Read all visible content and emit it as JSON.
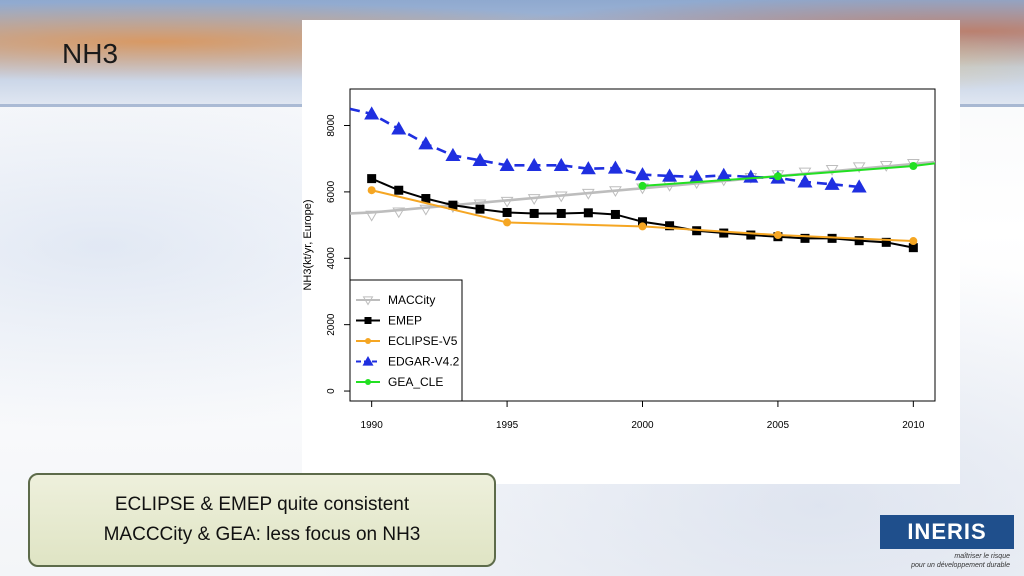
{
  "slide": {
    "title": "NH3"
  },
  "note": {
    "line1": "ECLIPSE & EMEP quite consistent",
    "line2": "MACCCity & GEA: less focus on NH3"
  },
  "logo": {
    "name": "INERIS",
    "tagline_line1": "maîtriser le risque",
    "tagline_line2": "pour un développement durable"
  },
  "chart_data": {
    "type": "line",
    "title": "",
    "xlabel": "",
    "ylabel": "NH3(kt/yr, Europe)",
    "xlim": [
      1989.2,
      2010.8
    ],
    "ylim": [
      -300,
      9100
    ],
    "xticks": [
      1990,
      1995,
      2000,
      2005,
      2010
    ],
    "yticks": [
      0,
      2000,
      4000,
      6000,
      8000
    ],
    "legend_position": "bottom-left",
    "series": [
      {
        "name": "MACCity",
        "color": "#bdbdbd",
        "marker": "triangle-down-open",
        "dash": "solid",
        "points": [
          [
            1989.2,
            5350
          ],
          [
            1990,
            5380
          ],
          [
            2010.8,
            6900
          ]
        ],
        "markers": [
          [
            1990,
            5300
          ],
          [
            1991,
            5400
          ],
          [
            1992,
            5480
          ],
          [
            1993,
            5560
          ],
          [
            1994,
            5640
          ],
          [
            1995,
            5720
          ],
          [
            1996,
            5800
          ],
          [
            1997,
            5880
          ],
          [
            1998,
            5960
          ],
          [
            1999,
            6040
          ],
          [
            2000,
            6120
          ],
          [
            2001,
            6200
          ],
          [
            2002,
            6280
          ],
          [
            2003,
            6360
          ],
          [
            2004,
            6440
          ],
          [
            2005,
            6520
          ],
          [
            2006,
            6600
          ],
          [
            2007,
            6680
          ],
          [
            2008,
            6760
          ],
          [
            2009,
            6800
          ],
          [
            2010,
            6860
          ]
        ]
      },
      {
        "name": "EMEP",
        "color": "#000000",
        "marker": "square",
        "dash": "solid",
        "points": [
          [
            1990,
            6400
          ],
          [
            1991,
            6050
          ],
          [
            1992,
            5800
          ],
          [
            1993,
            5600
          ],
          [
            1994,
            5480
          ],
          [
            1995,
            5380
          ],
          [
            1996,
            5350
          ],
          [
            1997,
            5350
          ],
          [
            1998,
            5370
          ],
          [
            1999,
            5320
          ],
          [
            2000,
            5100
          ],
          [
            2001,
            4980
          ],
          [
            2002,
            4830
          ],
          [
            2003,
            4760
          ],
          [
            2004,
            4700
          ],
          [
            2005,
            4650
          ],
          [
            2006,
            4600
          ],
          [
            2007,
            4600
          ],
          [
            2008,
            4530
          ],
          [
            2009,
            4480
          ],
          [
            2010,
            4320
          ]
        ]
      },
      {
        "name": "ECLIPSE-V5",
        "color": "#f5a623",
        "marker": "circle",
        "dash": "solid",
        "points": [
          [
            1990,
            6050
          ],
          [
            1995,
            5080
          ],
          [
            2000,
            4960
          ],
          [
            2005,
            4700
          ],
          [
            2010,
            4520
          ]
        ]
      },
      {
        "name": "EDGAR-V4.2",
        "color": "#1f2fe0",
        "marker": "triangle-up",
        "dash": "dashed",
        "points": [
          [
            1989.2,
            8500
          ],
          [
            1990,
            8350
          ],
          [
            1991,
            7900
          ],
          [
            1992,
            7450
          ],
          [
            1993,
            7100
          ],
          [
            1994,
            6950
          ],
          [
            1995,
            6800
          ],
          [
            1996,
            6800
          ],
          [
            1997,
            6800
          ],
          [
            1998,
            6700
          ],
          [
            1999,
            6720
          ],
          [
            2000,
            6520
          ],
          [
            2001,
            6480
          ],
          [
            2002,
            6450
          ],
          [
            2003,
            6500
          ],
          [
            2004,
            6450
          ],
          [
            2005,
            6420
          ],
          [
            2006,
            6300
          ],
          [
            2007,
            6230
          ],
          [
            2008,
            6150
          ]
        ],
        "marker_from": 1990
      },
      {
        "name": "GEA_CLE",
        "color": "#22e022",
        "marker": "circle",
        "dash": "solid",
        "points": [
          [
            2000,
            6180
          ],
          [
            2005,
            6470
          ],
          [
            2010,
            6780
          ],
          [
            2010.8,
            6860
          ]
        ],
        "marker_points": [
          [
            2000,
            6180
          ],
          [
            2005,
            6470
          ],
          [
            2010,
            6780
          ]
        ]
      }
    ]
  }
}
